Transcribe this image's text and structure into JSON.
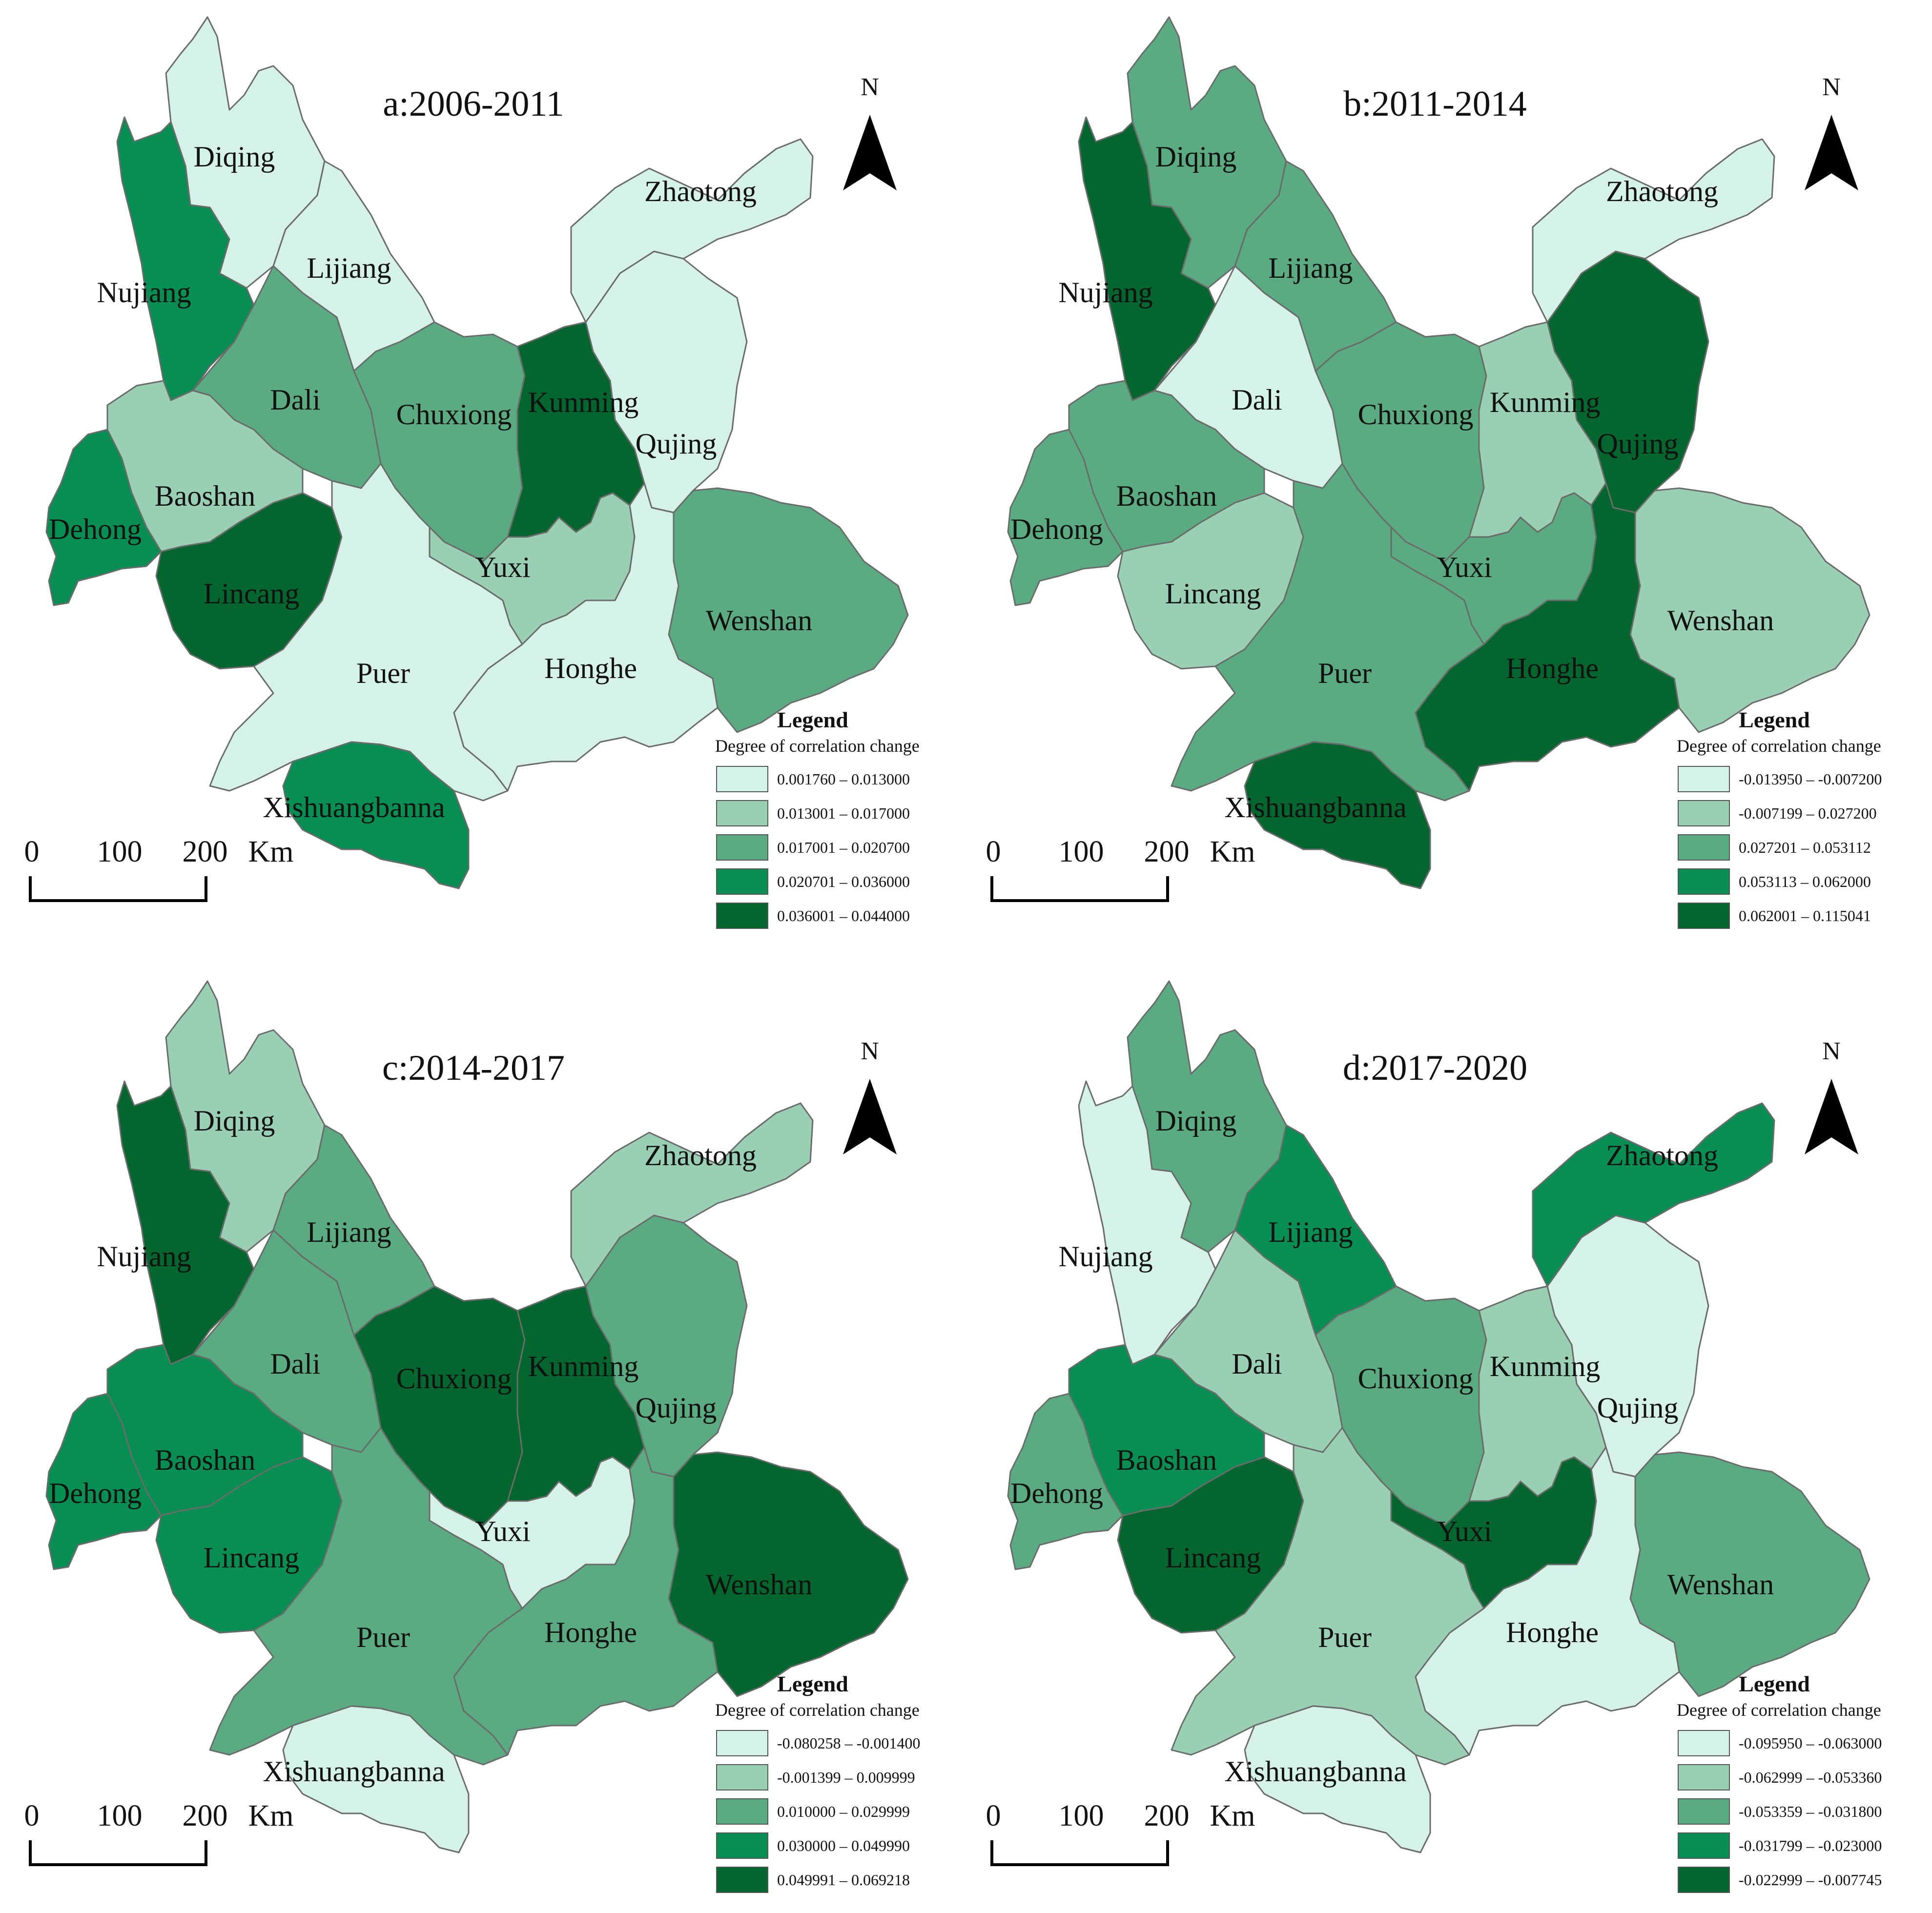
{
  "colors": [
    "#d4f2e7",
    "#99d0b4",
    "#5aab82",
    "#068e53",
    "#03662e"
  ],
  "north_label": "N",
  "scale_bar": {
    "labels": [
      "0",
      "100",
      "200"
    ],
    "unit": "Km"
  },
  "legend": {
    "title": "Legend",
    "subtitle": "Degree of correlation change"
  },
  "panels": [
    {
      "title": "a:2006-2011",
      "legend_ranges": [
        "0.001760 – 0.013000",
        "0.013001 – 0.017000",
        "0.017001 – 0.020700",
        "0.020701 – 0.036000",
        "0.036001 – 0.044000"
      ],
      "regions": [
        {
          "name": "Diqing",
          "class": 0
        },
        {
          "name": "Nujiang",
          "class": 3
        },
        {
          "name": "Lijiang",
          "class": 0
        },
        {
          "name": "Zhaotong",
          "class": 0
        },
        {
          "name": "Dali",
          "class": 2
        },
        {
          "name": "Chuxiong",
          "class": 2
        },
        {
          "name": "Kunming",
          "class": 4
        },
        {
          "name": "Qujing",
          "class": 0
        },
        {
          "name": "Baoshan",
          "class": 1
        },
        {
          "name": "Dehong",
          "class": 3
        },
        {
          "name": "Lincang",
          "class": 4
        },
        {
          "name": "Yuxi",
          "class": 1
        },
        {
          "name": "Wenshan",
          "class": 2
        },
        {
          "name": "Puer",
          "class": 0
        },
        {
          "name": "Honghe",
          "class": 0
        },
        {
          "name": "Xishuangbanna",
          "class": 3
        }
      ]
    },
    {
      "title": "b:2011-2014",
      "legend_ranges": [
        "-0.013950 – -0.007200",
        "-0.007199 – 0.027200",
        "0.027201 – 0.053112",
        "0.053113 – 0.062000",
        "0.062001 – 0.115041"
      ],
      "regions": [
        {
          "name": "Diqing",
          "class": 2
        },
        {
          "name": "Nujiang",
          "class": 4
        },
        {
          "name": "Lijiang",
          "class": 2
        },
        {
          "name": "Zhaotong",
          "class": 0
        },
        {
          "name": "Dali",
          "class": 0
        },
        {
          "name": "Chuxiong",
          "class": 2
        },
        {
          "name": "Kunming",
          "class": 1
        },
        {
          "name": "Qujing",
          "class": 4
        },
        {
          "name": "Baoshan",
          "class": 2
        },
        {
          "name": "Dehong",
          "class": 2
        },
        {
          "name": "Lincang",
          "class": 1
        },
        {
          "name": "Yuxi",
          "class": 2
        },
        {
          "name": "Wenshan",
          "class": 1
        },
        {
          "name": "Puer",
          "class": 2
        },
        {
          "name": "Honghe",
          "class": 4
        },
        {
          "name": "Xishuangbanna",
          "class": 4
        }
      ]
    },
    {
      "title": "c:2014-2017",
      "legend_ranges": [
        "-0.080258 – -0.001400",
        "-0.001399 – 0.009999",
        "0.010000 – 0.029999",
        "0.030000 – 0.049990",
        "0.049991 – 0.069218"
      ],
      "regions": [
        {
          "name": "Diqing",
          "class": 1
        },
        {
          "name": "Nujiang",
          "class": 4
        },
        {
          "name": "Lijiang",
          "class": 2
        },
        {
          "name": "Zhaotong",
          "class": 1
        },
        {
          "name": "Dali",
          "class": 2
        },
        {
          "name": "Chuxiong",
          "class": 4
        },
        {
          "name": "Kunming",
          "class": 4
        },
        {
          "name": "Qujing",
          "class": 2
        },
        {
          "name": "Baoshan",
          "class": 3
        },
        {
          "name": "Dehong",
          "class": 3
        },
        {
          "name": "Lincang",
          "class": 3
        },
        {
          "name": "Yuxi",
          "class": 0
        },
        {
          "name": "Wenshan",
          "class": 4
        },
        {
          "name": "Puer",
          "class": 2
        },
        {
          "name": "Honghe",
          "class": 2
        },
        {
          "name": "Xishuangbanna",
          "class": 0
        }
      ]
    },
    {
      "title": "d:2017-2020",
      "legend_ranges": [
        "-0.095950 – -0.063000",
        "-0.062999 – -0.053360",
        "-0.053359 – -0.031800",
        "-0.031799 – -0.023000",
        "-0.022999 – -0.007745"
      ],
      "regions": [
        {
          "name": "Diqing",
          "class": 2
        },
        {
          "name": "Nujiang",
          "class": 0
        },
        {
          "name": "Lijiang",
          "class": 3
        },
        {
          "name": "Zhaotong",
          "class": 3
        },
        {
          "name": "Dali",
          "class": 1
        },
        {
          "name": "Chuxiong",
          "class": 2
        },
        {
          "name": "Kunming",
          "class": 1
        },
        {
          "name": "Qujing",
          "class": 0
        },
        {
          "name": "Baoshan",
          "class": 3
        },
        {
          "name": "Dehong",
          "class": 2
        },
        {
          "name": "Lincang",
          "class": 4
        },
        {
          "name": "Yuxi",
          "class": 4
        },
        {
          "name": "Wenshan",
          "class": 2
        },
        {
          "name": "Puer",
          "class": 1
        },
        {
          "name": "Honghe",
          "class": 0
        },
        {
          "name": "Xishuangbanna",
          "class": 0
        }
      ]
    }
  ]
}
